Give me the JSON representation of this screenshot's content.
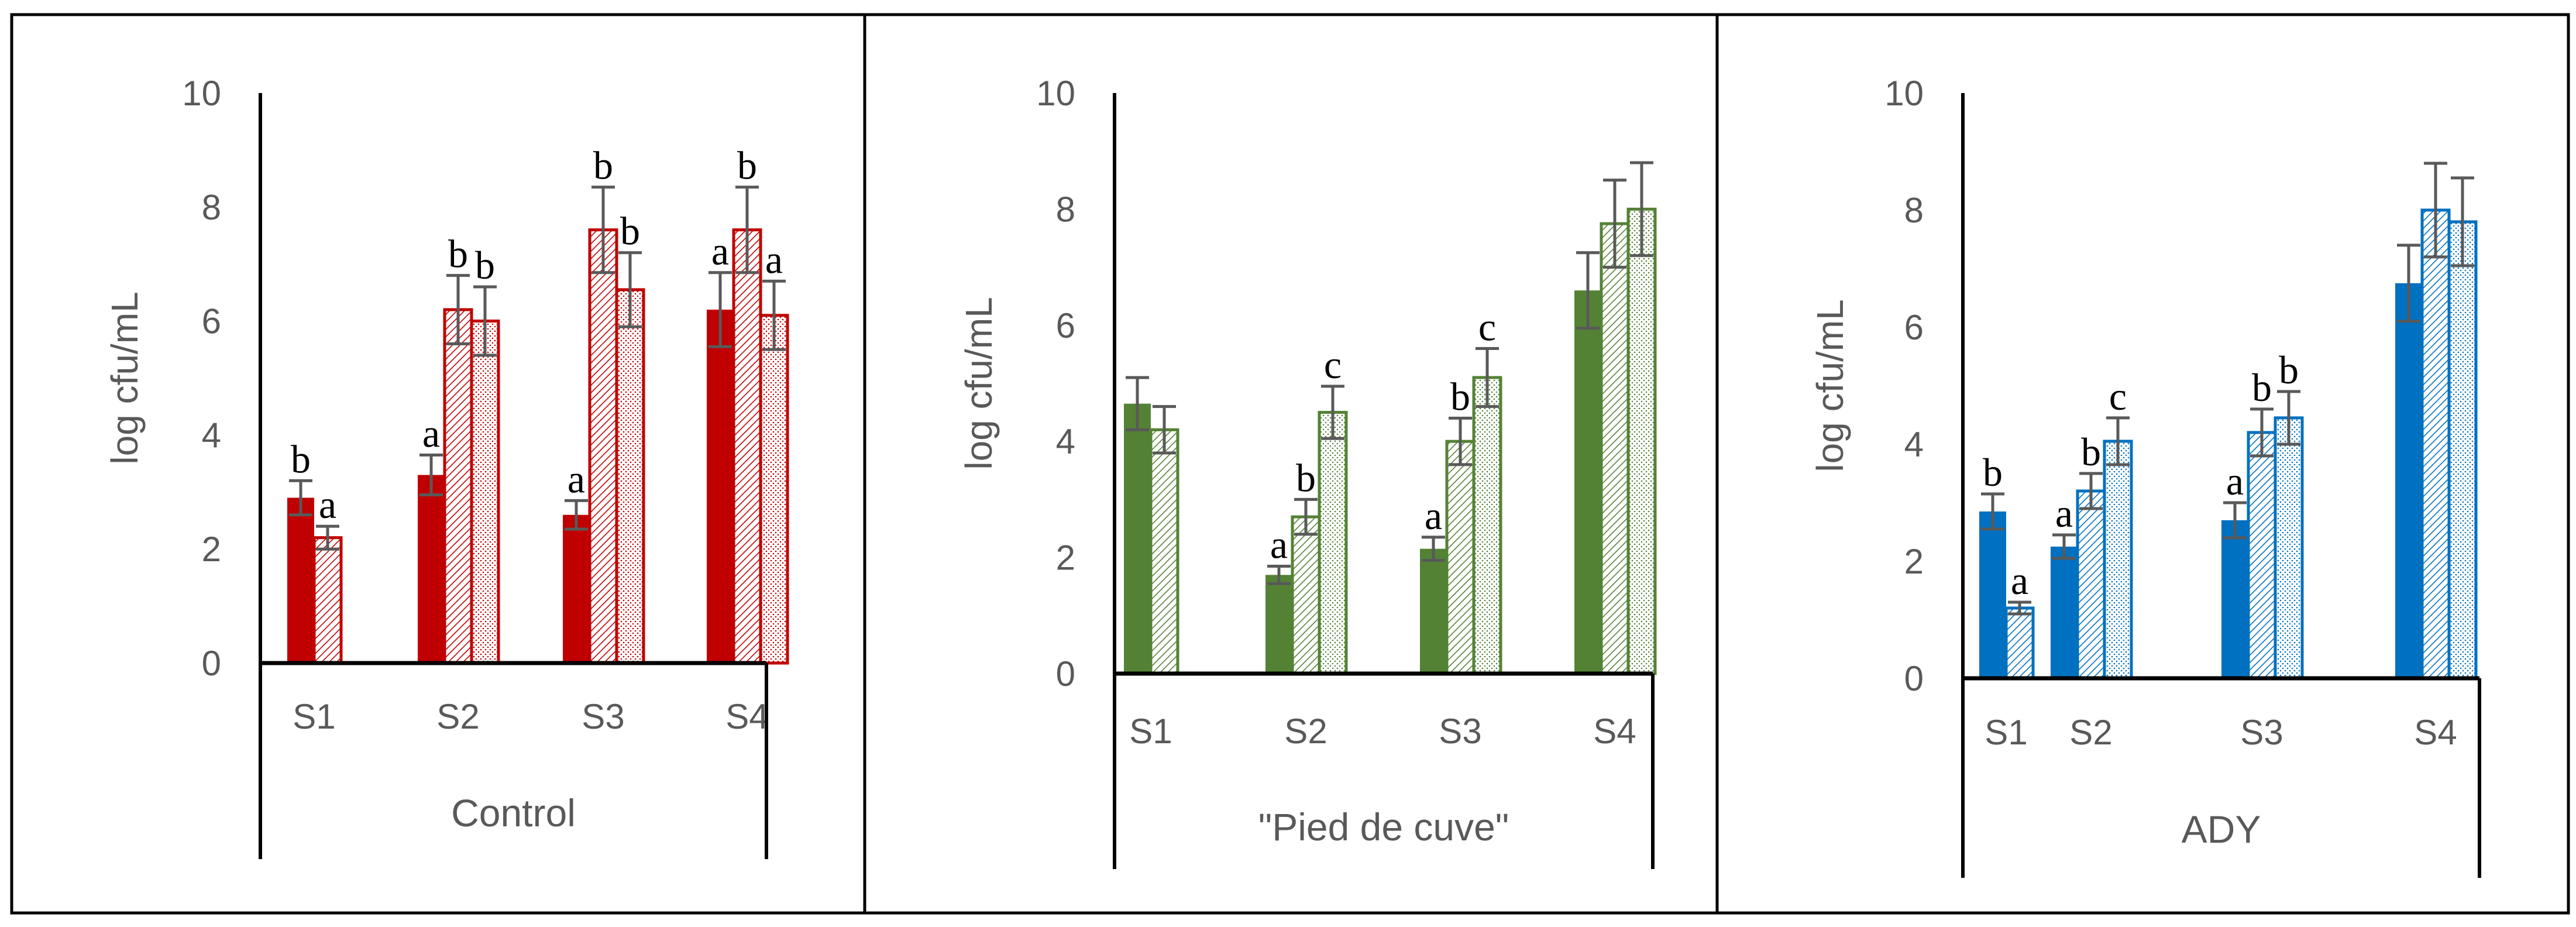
{
  "chart_data": [
    {
      "type": "bar",
      "category_title": "Control",
      "ylabel": "log cfu/mL",
      "ylim": [
        0,
        10
      ],
      "yticks": [
        "0",
        "2",
        "4",
        "6",
        "8",
        "10"
      ],
      "categories": [
        "S1",
        "S2",
        "S3",
        "S4"
      ],
      "color": "#C00000",
      "series": [
        {
          "pattern": "solid",
          "values": [
            2.9,
            3.3,
            2.6,
            6.2
          ],
          "errors": [
            0.3,
            0.35,
            0.25,
            0.65
          ],
          "letters": [
            "b",
            "a",
            "a",
            "a"
          ]
        },
        {
          "pattern": "diagonal-hatch",
          "values": [
            2.2,
            6.2,
            7.6,
            7.6
          ],
          "errors": [
            0.2,
            0.6,
            0.75,
            0.75
          ],
          "letters": [
            "a",
            "b",
            "b",
            "b"
          ]
        },
        {
          "pattern": "dotted",
          "values": [
            null,
            6.0,
            6.55,
            6.1
          ],
          "errors": [
            null,
            0.6,
            0.65,
            0.6
          ],
          "letters": [
            "",
            "b",
            "b",
            "a"
          ]
        }
      ]
    },
    {
      "type": "bar",
      "category_title": "\"Pied de cuve\"",
      "ylabel": "log cfu/mL",
      "ylim": [
        0,
        10
      ],
      "yticks": [
        "0",
        "2",
        "4",
        "6",
        "8",
        "10"
      ],
      "categories": [
        "S1",
        "S2",
        "S3",
        "S4"
      ],
      "color": "#548235",
      "series": [
        {
          "pattern": "solid",
          "values": [
            4.65,
            1.7,
            2.15,
            6.6
          ],
          "errors": [
            0.45,
            0.15,
            0.2,
            0.65
          ],
          "letters": [
            "",
            "a",
            "a",
            ""
          ]
        },
        {
          "pattern": "diagonal-hatch",
          "values": [
            4.2,
            2.7,
            4.0,
            7.75
          ],
          "errors": [
            0.4,
            0.3,
            0.4,
            0.75
          ],
          "letters": [
            "",
            "b",
            "b",
            ""
          ]
        },
        {
          "pattern": "dotted",
          "values": [
            null,
            4.5,
            5.1,
            8.0
          ],
          "errors": [
            null,
            0.45,
            0.5,
            0.8
          ],
          "letters": [
            "",
            "c",
            "c",
            ""
          ]
        }
      ]
    },
    {
      "type": "bar",
      "category_title": "ADY",
      "ylabel": "log cfu/mL",
      "ylim": [
        0,
        10
      ],
      "yticks": [
        "0",
        "2",
        "4",
        "6",
        "8",
        "10"
      ],
      "categories": [
        "S1",
        "S2",
        "S3",
        "S4"
      ],
      "color": "#0070C0",
      "series": [
        {
          "pattern": "solid",
          "values": [
            2.85,
            2.25,
            2.7,
            6.75
          ],
          "errors": [
            0.3,
            0.2,
            0.3,
            0.65
          ],
          "letters": [
            "b",
            "a",
            "a",
            ""
          ]
        },
        {
          "pattern": "diagonal-hatch",
          "values": [
            1.2,
            3.2,
            4.2,
            8.0
          ],
          "errors": [
            0.1,
            0.3,
            0.4,
            0.8
          ],
          "letters": [
            "a",
            "b",
            "b",
            ""
          ]
        },
        {
          "pattern": "dotted",
          "values": [
            null,
            4.05,
            4.45,
            7.8
          ],
          "errors": [
            null,
            0.4,
            0.45,
            0.75
          ],
          "letters": [
            "",
            "c",
            "b",
            ""
          ]
        }
      ]
    }
  ]
}
